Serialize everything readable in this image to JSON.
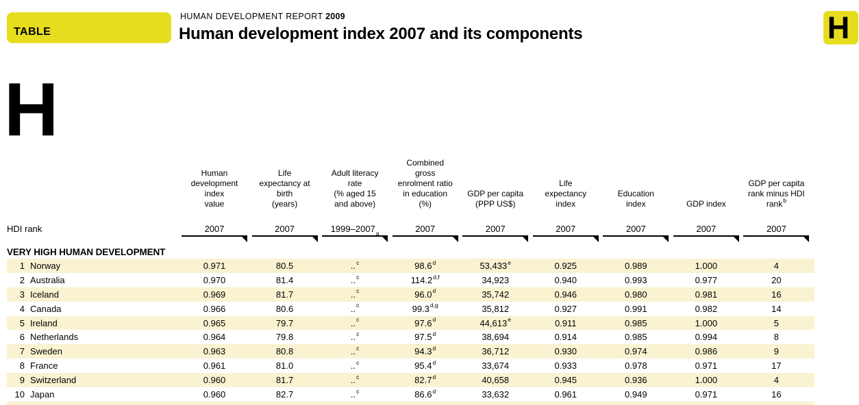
{
  "page": {
    "table_tag": "TABLE",
    "report_name": "HUMAN DEVELOPMENT REPORT",
    "report_year": "2009",
    "title": "Human development index 2007 and its components",
    "corner_letter": "H",
    "side_letter": "H",
    "accent_yellow": "#e7dd1f",
    "row_band_color": "#faf3d2"
  },
  "table": {
    "row_label_header": "HDI rank",
    "section_header": "VERY HIGH HUMAN DEVELOPMENT",
    "columns": [
      {
        "key": "hdi_value",
        "header": "Human\ndevelopment\nindex\nvalue",
        "year": "2007"
      },
      {
        "key": "life_expectancy",
        "header": "Life\nexpectancy at\nbirth\n(years)",
        "year": "2007"
      },
      {
        "key": "adult_literacy",
        "header": "Adult literacy\nrate\n(% aged 15\nand above)",
        "year": "1999–2007",
        "year_sup": "a"
      },
      {
        "key": "enrolment_ratio",
        "header": "Combined\ngross\nenrolment ratio\nin education\n(%)",
        "year": "2007"
      },
      {
        "key": "gdp_per_capita",
        "header": "GDP per capita\n(PPP US$)",
        "year": "2007"
      },
      {
        "key": "life_expectancy_index",
        "header": "Life\nexpectancy\nindex",
        "year": "2007"
      },
      {
        "key": "education_index",
        "header": "Education\nindex",
        "year": "2007"
      },
      {
        "key": "gdp_index",
        "header": "GDP index",
        "year": "2007"
      },
      {
        "key": "gdp_rank_minus_hdi_rank",
        "header": "GDP per capita\nrank minus HDI\nrank",
        "header_sup": "b",
        "year": "2007"
      }
    ],
    "rows": [
      {
        "rank": "1",
        "country": "Norway",
        "cells": [
          {
            "v": "0.971"
          },
          {
            "v": "80.5"
          },
          {
            "v": "..",
            "s": "c"
          },
          {
            "v": "98.6",
            "s": "d"
          },
          {
            "v": "53,433",
            "s": "e"
          },
          {
            "v": "0.925"
          },
          {
            "v": "0.989"
          },
          {
            "v": "1.000"
          },
          {
            "v": "4"
          }
        ]
      },
      {
        "rank": "2",
        "country": "Australia",
        "cells": [
          {
            "v": "0.970"
          },
          {
            "v": "81.4"
          },
          {
            "v": "..",
            "s": "c"
          },
          {
            "v": "114.2",
            "s": "d,f"
          },
          {
            "v": "34,923"
          },
          {
            "v": "0.940"
          },
          {
            "v": "0.993"
          },
          {
            "v": "0.977"
          },
          {
            "v": "20"
          }
        ]
      },
      {
        "rank": "3",
        "country": "Iceland",
        "cells": [
          {
            "v": "0.969"
          },
          {
            "v": "81.7"
          },
          {
            "v": "..",
            "s": "c"
          },
          {
            "v": "96.0",
            "s": "d"
          },
          {
            "v": "35,742"
          },
          {
            "v": "0.946"
          },
          {
            "v": "0.980"
          },
          {
            "v": "0.981"
          },
          {
            "v": "16"
          }
        ]
      },
      {
        "rank": "4",
        "country": "Canada",
        "cells": [
          {
            "v": "0.966"
          },
          {
            "v": "80.6"
          },
          {
            "v": "..",
            "s": "c"
          },
          {
            "v": "99.3",
            "s": "d,g"
          },
          {
            "v": "35,812"
          },
          {
            "v": "0.927"
          },
          {
            "v": "0.991"
          },
          {
            "v": "0.982"
          },
          {
            "v": "14"
          }
        ]
      },
      {
        "rank": "5",
        "country": "Ireland",
        "cells": [
          {
            "v": "0.965"
          },
          {
            "v": "79.7"
          },
          {
            "v": "..",
            "s": "c"
          },
          {
            "v": "97.6",
            "s": "d"
          },
          {
            "v": "44,613",
            "s": "e"
          },
          {
            "v": "0.911"
          },
          {
            "v": "0.985"
          },
          {
            "v": "1.000"
          },
          {
            "v": "5"
          }
        ]
      },
      {
        "rank": "6",
        "country": "Netherlands",
        "cells": [
          {
            "v": "0.964"
          },
          {
            "v": "79.8"
          },
          {
            "v": "..",
            "s": "c"
          },
          {
            "v": "97.5",
            "s": "d"
          },
          {
            "v": "38,694"
          },
          {
            "v": "0.914"
          },
          {
            "v": "0.985"
          },
          {
            "v": "0.994"
          },
          {
            "v": "8"
          }
        ]
      },
      {
        "rank": "7",
        "country": "Sweden",
        "cells": [
          {
            "v": "0.963"
          },
          {
            "v": "80.8"
          },
          {
            "v": "..",
            "s": "c"
          },
          {
            "v": "94.3",
            "s": "d"
          },
          {
            "v": "36,712"
          },
          {
            "v": "0.930"
          },
          {
            "v": "0.974"
          },
          {
            "v": "0.986"
          },
          {
            "v": "9"
          }
        ]
      },
      {
        "rank": "8",
        "country": "France",
        "cells": [
          {
            "v": "0.961"
          },
          {
            "v": "81.0"
          },
          {
            "v": "..",
            "s": "c"
          },
          {
            "v": "95.4",
            "s": "d"
          },
          {
            "v": "33,674"
          },
          {
            "v": "0.933"
          },
          {
            "v": "0.978"
          },
          {
            "v": "0.971"
          },
          {
            "v": "17"
          }
        ]
      },
      {
        "rank": "9",
        "country": "Switzerland",
        "cells": [
          {
            "v": "0.960"
          },
          {
            "v": "81.7"
          },
          {
            "v": "..",
            "s": "c"
          },
          {
            "v": "82.7",
            "s": "d"
          },
          {
            "v": "40,658"
          },
          {
            "v": "0.945"
          },
          {
            "v": "0.936"
          },
          {
            "v": "1.000"
          },
          {
            "v": "4"
          }
        ]
      },
      {
        "rank": "10",
        "country": "Japan",
        "cells": [
          {
            "v": "0.960"
          },
          {
            "v": "82.7"
          },
          {
            "v": "..",
            "s": "c"
          },
          {
            "v": "86.6",
            "s": "d"
          },
          {
            "v": "33,632"
          },
          {
            "v": "0.961"
          },
          {
            "v": "0.949"
          },
          {
            "v": "0.971"
          },
          {
            "v": "16"
          }
        ]
      }
    ]
  }
}
